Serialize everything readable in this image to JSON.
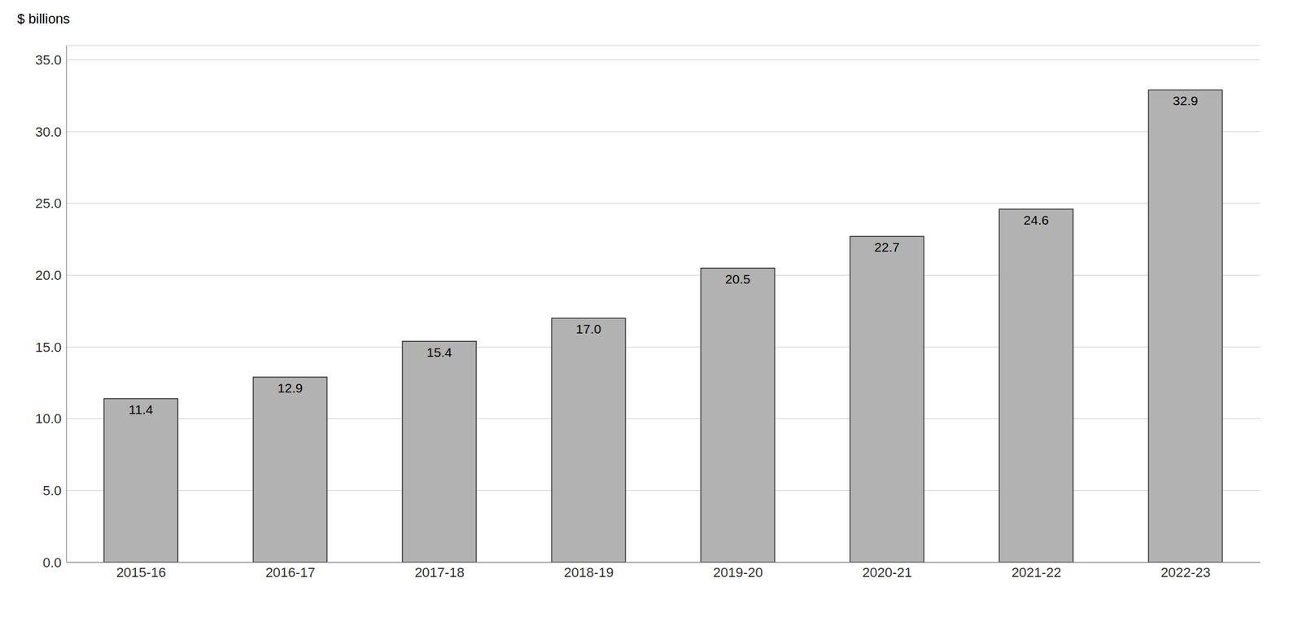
{
  "chart_data": {
    "type": "bar",
    "ylabel": "$ billions",
    "categories": [
      "2015-16",
      "2016-17",
      "2017-18",
      "2018-19",
      "2019-20",
      "2020-21",
      "2021-22",
      "2022-23"
    ],
    "values": [
      11.4,
      12.9,
      15.4,
      17.0,
      20.5,
      22.7,
      24.6,
      32.9
    ],
    "value_labels": [
      "11.4",
      "12.9",
      "15.4",
      "17.0",
      "20.5",
      "22.7",
      "24.6",
      "32.9"
    ],
    "data_labels": true,
    "color": "#b2b2b2",
    "ylim": [
      0,
      36.0
    ],
    "yticks": [
      {
        "value": 0.0,
        "label": "0.0"
      },
      {
        "value": 5.0,
        "label": "5.0"
      },
      {
        "value": 10.0,
        "label": "10.0"
      },
      {
        "value": 15.0,
        "label": "15.0"
      },
      {
        "value": 20.0,
        "label": "20.0"
      },
      {
        "value": 25.0,
        "label": "25.0"
      },
      {
        "value": 30.0,
        "label": "30.0"
      },
      {
        "value": 35.0,
        "label": "35.0"
      }
    ],
    "grid": true
  }
}
